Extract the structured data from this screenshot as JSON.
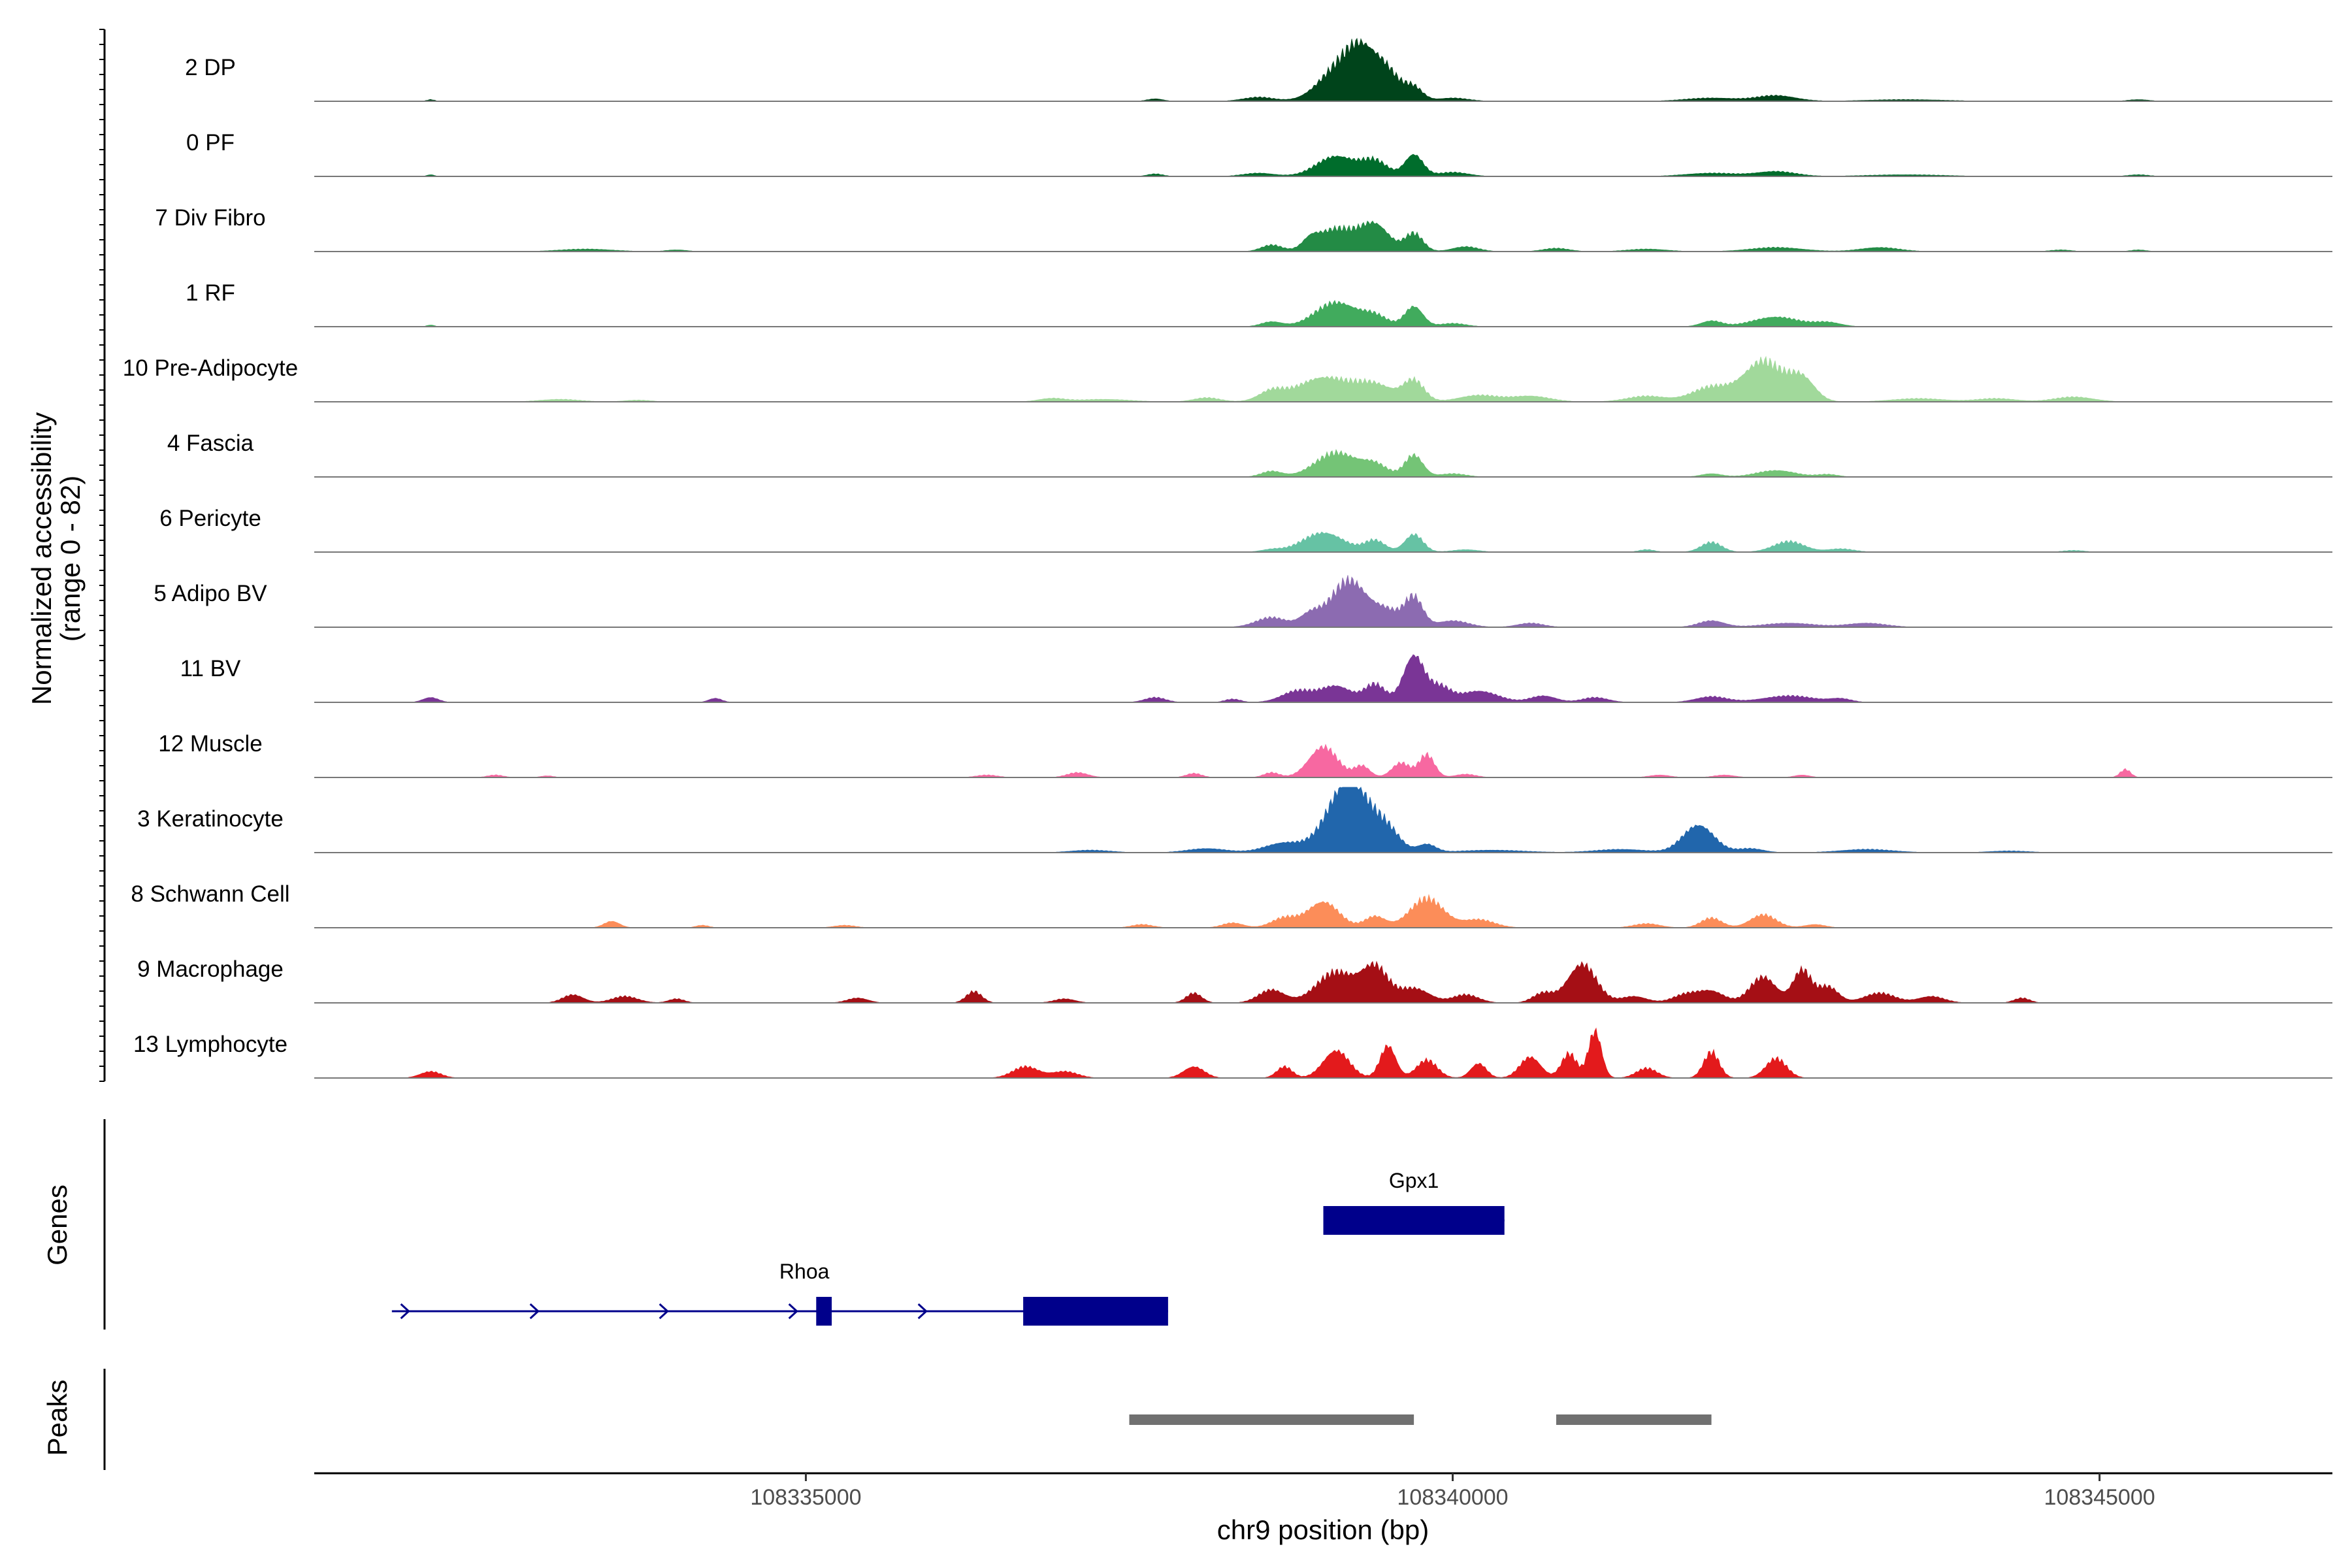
{
  "chart_data": {
    "type": "area",
    "title": "",
    "ylabel_line1": "Normalized accessibility",
    "ylabel_line2": "(range 0 - 82)",
    "yrange": [
      0,
      82
    ],
    "xlabel": "chr9 position (bp)",
    "xlim": [
      108331200,
      108346800
    ],
    "xticks": [
      108335000,
      108340000,
      108345000
    ],
    "xtick_labels": [
      "108335000",
      "108340000",
      "108345000"
    ],
    "genes_label": "Genes",
    "peaks_label": "Peaks",
    "tracks": [
      {
        "name": "2 DP",
        "color": "#00441B",
        "bumps": [
          [
            108332100,
            30,
            2
          ],
          [
            108337700,
            60,
            3
          ],
          [
            108338500,
            120,
            5
          ],
          [
            108339100,
            150,
            35
          ],
          [
            108339300,
            120,
            55
          ],
          [
            108339500,
            100,
            30
          ],
          [
            108339700,
            70,
            16
          ],
          [
            108340000,
            120,
            4
          ],
          [
            108342000,
            200,
            4
          ],
          [
            108342500,
            150,
            7
          ],
          [
            108343500,
            300,
            2
          ],
          [
            108345300,
            80,
            2
          ]
        ]
      },
      {
        "name": "0 PF",
        "color": "#006D2C",
        "bumps": [
          [
            108332100,
            30,
            2
          ],
          [
            108337700,
            60,
            3
          ],
          [
            108338500,
            120,
            4
          ],
          [
            108339100,
            150,
            25
          ],
          [
            108339400,
            100,
            18
          ],
          [
            108339700,
            70,
            27
          ],
          [
            108340000,
            120,
            5
          ],
          [
            108342000,
            200,
            4
          ],
          [
            108342500,
            150,
            6
          ],
          [
            108343500,
            300,
            2
          ],
          [
            108345300,
            80,
            2
          ]
        ]
      },
      {
        "name": "7 Div Fibro",
        "color": "#238B45",
        "bumps": [
          [
            108333300,
            200,
            3
          ],
          [
            108334000,
            80,
            2
          ],
          [
            108338600,
            80,
            8
          ],
          [
            108338900,
            60,
            10
          ],
          [
            108339100,
            150,
            28
          ],
          [
            108339400,
            110,
            32
          ],
          [
            108339700,
            70,
            22
          ],
          [
            108340100,
            100,
            6
          ],
          [
            108340800,
            100,
            4
          ],
          [
            108341500,
            150,
            3
          ],
          [
            108342500,
            200,
            5
          ],
          [
            108343300,
            150,
            5
          ],
          [
            108344700,
            80,
            2
          ],
          [
            108345300,
            60,
            2
          ]
        ]
      },
      {
        "name": "1 RF",
        "color": "#41AB5D",
        "bumps": [
          [
            108332100,
            30,
            2
          ],
          [
            108338600,
            80,
            6
          ],
          [
            108339100,
            160,
            30
          ],
          [
            108339400,
            100,
            12
          ],
          [
            108339700,
            70,
            25
          ],
          [
            108340000,
            100,
            4
          ],
          [
            108342000,
            80,
            7
          ],
          [
            108342500,
            180,
            12
          ],
          [
            108342900,
            100,
            5
          ]
        ]
      },
      {
        "name": "10 Pre-Adipocyte",
        "color": "#A1D99B",
        "bumps": [
          [
            108333100,
            150,
            3
          ],
          [
            108333700,
            100,
            2
          ],
          [
            108336900,
            100,
            4
          ],
          [
            108337300,
            200,
            3
          ],
          [
            108338100,
            100,
            5
          ],
          [
            108338600,
            100,
            12
          ],
          [
            108339000,
            200,
            30
          ],
          [
            108339400,
            150,
            20
          ],
          [
            108339700,
            80,
            25
          ],
          [
            108340200,
            150,
            8
          ],
          [
            108340600,
            150,
            7
          ],
          [
            108341500,
            150,
            7
          ],
          [
            108342000,
            150,
            18
          ],
          [
            108342400,
            150,
            50
          ],
          [
            108342700,
            100,
            28
          ],
          [
            108343600,
            200,
            4
          ],
          [
            108344200,
            150,
            4
          ],
          [
            108344800,
            150,
            6
          ]
        ]
      },
      {
        "name": "4 Fascia",
        "color": "#74C476",
        "bumps": [
          [
            108338600,
            80,
            7
          ],
          [
            108339100,
            160,
            30
          ],
          [
            108339400,
            100,
            14
          ],
          [
            108339700,
            70,
            27
          ],
          [
            108340000,
            100,
            4
          ],
          [
            108342000,
            80,
            4
          ],
          [
            108342500,
            150,
            8
          ],
          [
            108342900,
            80,
            3
          ]
        ]
      },
      {
        "name": "6 Pericyte",
        "color": "#66C2A4",
        "bumps": [
          [
            108338600,
            80,
            3
          ],
          [
            108339000,
            160,
            24
          ],
          [
            108339400,
            80,
            14
          ],
          [
            108339700,
            70,
            22
          ],
          [
            108340100,
            100,
            3
          ],
          [
            108341500,
            60,
            3
          ],
          [
            108342000,
            80,
            12
          ],
          [
            108342600,
            120,
            13
          ],
          [
            108343000,
            100,
            4
          ],
          [
            108344800,
            80,
            2
          ]
        ]
      },
      {
        "name": "5 Adipo BV",
        "color": "#8C6BB1",
        "bumps": [
          [
            108338600,
            120,
            12
          ],
          [
            108338900,
            80,
            15
          ],
          [
            108339200,
            140,
            58
          ],
          [
            108339500,
            100,
            18
          ],
          [
            108339700,
            70,
            36
          ],
          [
            108340000,
            120,
            8
          ],
          [
            108340600,
            100,
            5
          ],
          [
            108342000,
            100,
            8
          ],
          [
            108342600,
            200,
            5
          ],
          [
            108343200,
            150,
            5
          ]
        ]
      },
      {
        "name": "11 BV",
        "color": "#7A3596",
        "bumps": [
          [
            108332100,
            60,
            6
          ],
          [
            108334300,
            50,
            5
          ],
          [
            108337700,
            80,
            6
          ],
          [
            108338300,
            60,
            4
          ],
          [
            108338800,
            120,
            14
          ],
          [
            108339100,
            120,
            20
          ],
          [
            108339400,
            80,
            22
          ],
          [
            108339700,
            80,
            58
          ],
          [
            108339900,
            80,
            18
          ],
          [
            108340200,
            150,
            14
          ],
          [
            108340700,
            100,
            8
          ],
          [
            108341100,
            100,
            6
          ],
          [
            108342000,
            120,
            7
          ],
          [
            108342600,
            200,
            8
          ],
          [
            108343000,
            80,
            4
          ]
        ]
      },
      {
        "name": "12 Muscle",
        "color": "#F768A1",
        "bumps": [
          [
            108332600,
            60,
            3
          ],
          [
            108333000,
            50,
            2
          ],
          [
            108336400,
            80,
            3
          ],
          [
            108337100,
            80,
            6
          ],
          [
            108338000,
            60,
            5
          ],
          [
            108338600,
            60,
            6
          ],
          [
            108339000,
            110,
            38
          ],
          [
            108339300,
            60,
            14
          ],
          [
            108339600,
            70,
            18
          ],
          [
            108339800,
            60,
            28
          ],
          [
            108340100,
            80,
            4
          ],
          [
            108341600,
            80,
            3
          ],
          [
            108342100,
            80,
            3
          ],
          [
            108342700,
            60,
            3
          ],
          [
            108345200,
            40,
            10
          ]
        ]
      },
      {
        "name": "3 Keratinocyte",
        "color": "#2166AC",
        "bumps": [
          [
            108337200,
            150,
            3
          ],
          [
            108338100,
            150,
            5
          ],
          [
            108338700,
            150,
            12
          ],
          [
            108339200,
            160,
            90
          ],
          [
            108339500,
            100,
            22
          ],
          [
            108339800,
            70,
            10
          ],
          [
            108340300,
            250,
            3
          ],
          [
            108341300,
            200,
            4
          ],
          [
            108341900,
            120,
            34
          ],
          [
            108342300,
            100,
            5
          ],
          [
            108343200,
            200,
            4
          ],
          [
            108344300,
            150,
            2
          ]
        ]
      },
      {
        "name": "8 Schwann Cell",
        "color": "#FC8D59",
        "bumps": [
          [
            108333500,
            60,
            8
          ],
          [
            108334200,
            50,
            3
          ],
          [
            108335300,
            80,
            3
          ],
          [
            108337600,
            80,
            4
          ],
          [
            108338300,
            80,
            6
          ],
          [
            108338700,
            100,
            12
          ],
          [
            108339000,
            120,
            32
          ],
          [
            108339400,
            80,
            14
          ],
          [
            108339800,
            130,
            36
          ],
          [
            108340200,
            120,
            10
          ],
          [
            108341500,
            100,
            5
          ],
          [
            108342000,
            80,
            12
          ],
          [
            108342400,
            100,
            16
          ],
          [
            108342800,
            80,
            4
          ]
        ]
      },
      {
        "name": "9 Macrophage",
        "color": "#A50F15",
        "bumps": [
          [
            108333200,
            80,
            10
          ],
          [
            108333600,
            100,
            8
          ],
          [
            108334000,
            60,
            5
          ],
          [
            108335400,
            80,
            6
          ],
          [
            108336300,
            60,
            14
          ],
          [
            108337000,
            80,
            5
          ],
          [
            108338000,
            60,
            12
          ],
          [
            108338600,
            100,
            16
          ],
          [
            108339100,
            150,
            38
          ],
          [
            108339400,
            100,
            42
          ],
          [
            108339700,
            120,
            18
          ],
          [
            108340100,
            100,
            10
          ],
          [
            108340700,
            80,
            12
          ],
          [
            108341000,
            110,
            48
          ],
          [
            108341400,
            100,
            8
          ],
          [
            108341800,
            100,
            10
          ],
          [
            108342000,
            100,
            14
          ],
          [
            108342400,
            100,
            32
          ],
          [
            108342700,
            70,
            40
          ],
          [
            108342900,
            80,
            20
          ],
          [
            108343300,
            120,
            12
          ],
          [
            108343700,
            100,
            8
          ],
          [
            108344400,
            60,
            6
          ]
        ]
      },
      {
        "name": "13 Lymphocyte",
        "color": "#E31A1C",
        "bumps": [
          [
            108332100,
            80,
            8
          ],
          [
            108336700,
            100,
            14
          ],
          [
            108337000,
            100,
            8
          ],
          [
            108338000,
            80,
            14
          ],
          [
            108338700,
            60,
            14
          ],
          [
            108339100,
            100,
            34
          ],
          [
            108339500,
            60,
            40
          ],
          [
            108339800,
            80,
            22
          ],
          [
            108340200,
            60,
            18
          ],
          [
            108340600,
            80,
            26
          ],
          [
            108340900,
            60,
            30
          ],
          [
            108341100,
            50,
            58
          ],
          [
            108341500,
            80,
            12
          ],
          [
            108342000,
            60,
            32
          ],
          [
            108342500,
            80,
            24
          ]
        ]
      }
    ],
    "genes": [
      {
        "name": "Gpx1",
        "strand": "-",
        "start": 108339000,
        "end": 108340400,
        "exons": [
          [
            108339000,
            108340400
          ]
        ]
      },
      {
        "name": "Rhoa",
        "strand": "+",
        "start": 108331800,
        "end": 108337800,
        "exons": [
          [
            108335080,
            108335200
          ],
          [
            108336680,
            108337800
          ]
        ]
      }
    ],
    "peaks": [
      [
        108337500,
        108339700
      ],
      [
        108340800,
        108342000
      ]
    ]
  }
}
